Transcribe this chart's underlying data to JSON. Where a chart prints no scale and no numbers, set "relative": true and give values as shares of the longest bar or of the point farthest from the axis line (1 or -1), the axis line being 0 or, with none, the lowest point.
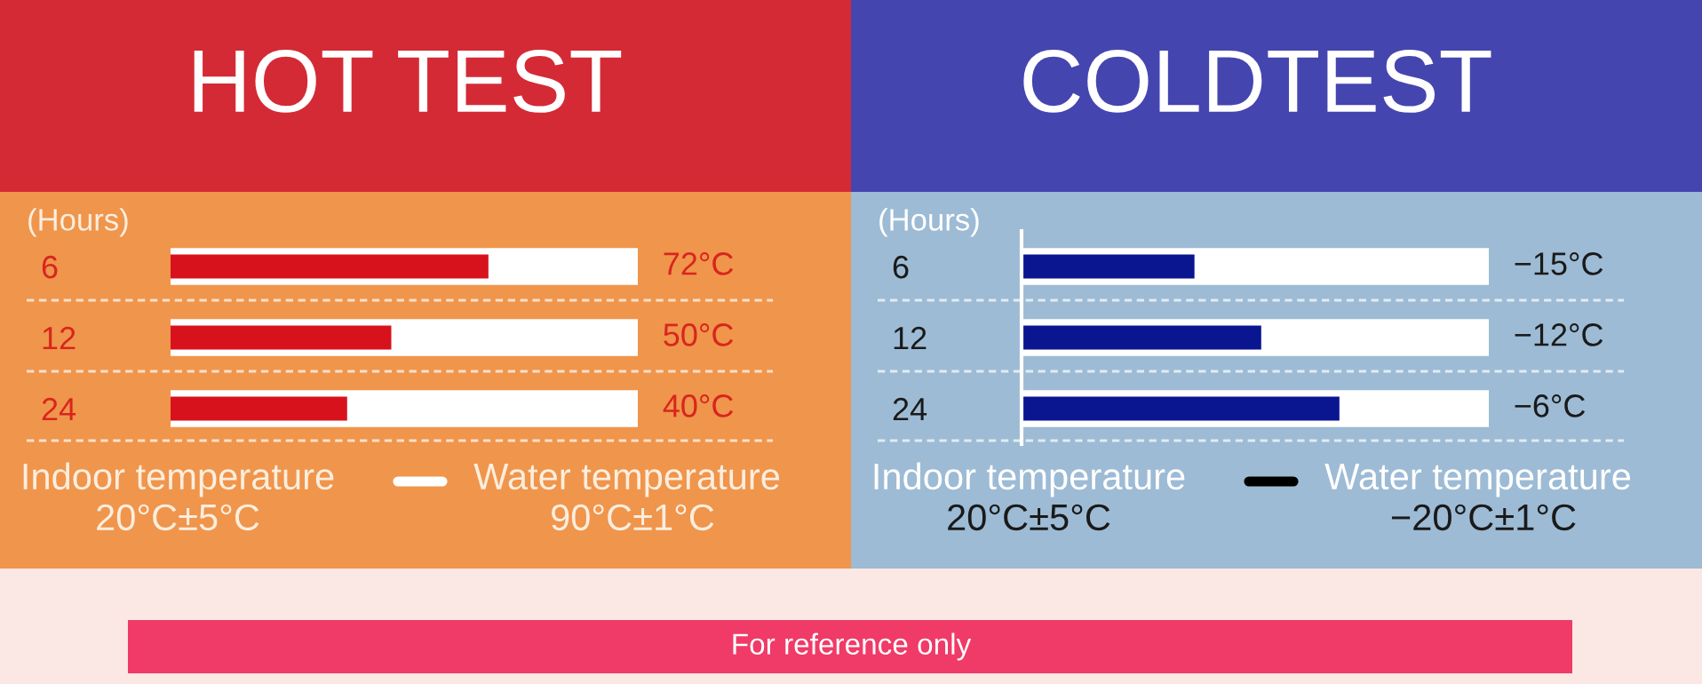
{
  "chart_data": [
    {
      "type": "bar",
      "orientation": "horizontal",
      "title": "HOT TEST",
      "ylabel": "(Hours)",
      "categories": [
        "6",
        "12",
        "24"
      ],
      "values": [
        72,
        50,
        40
      ],
      "tick_labels": "y",
      "color": "#d8121c",
      "value_labels": [
        "72°C",
        "50°C",
        "40°C"
      ],
      "annotations": [
        "Indoor temperature",
        "20°C±5°C",
        "Water temperature",
        "90°C±1°C",
        "For reference only"
      ]
    },
    {
      "type": "bar",
      "orientation": "horizontal",
      "relative": true,
      "title": "COLDTEST",
      "ylabel": "(Hours)",
      "categories": [
        "6",
        "12",
        "24"
      ],
      "values": [
        0.544,
        0.754,
        1
      ],
      "color": "#0a1690",
      "annotations": [
        "−15°C",
        "−12°C",
        "−6°C",
        "Indoor temperature",
        "20°C±5°C",
        "Water temperature",
        "−20°C±1°C"
      ]
    }
  ]
}
